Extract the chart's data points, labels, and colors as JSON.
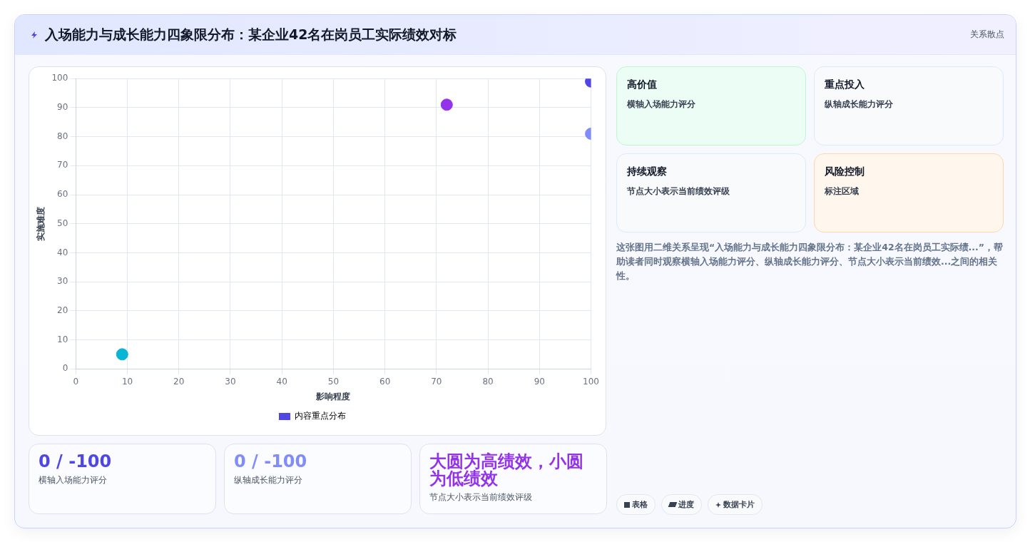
{
  "chart_data": {
    "type": "scatter",
    "title": "入场能力与成长能力四象限分布：某企业42名在岗员工实际绩效对标",
    "xlabel": "影响程度",
    "ylabel": "实施难度",
    "x": [
      9,
      72,
      100,
      100
    ],
    "series": [
      {
        "name": "内容重点分布",
        "color": "#4f46e5",
        "colors": [
          "#06b6d4",
          "#9333ea",
          "#4f46e5",
          "#818cf8"
        ],
        "values": [
          5,
          91,
          99,
          81
        ]
      }
    ],
    "xlim": [
      0,
      100
    ],
    "xticks": [
      0,
      10,
      20,
      30,
      40,
      50,
      60,
      70,
      80,
      90,
      100
    ],
    "ylim": [
      0,
      100
    ],
    "yticks": [
      0,
      10,
      20,
      30,
      40,
      50,
      60,
      70,
      80,
      90,
      100
    ],
    "grid": true,
    "legend": "bottom",
    "marker": "circle",
    "annotations": [
      "关系散点",
      "高价值",
      "横轴入场能力评分",
      "重点投入",
      "纵轴成长能力评分",
      "持续观察",
      "节点大小表示当前绩效评级",
      "风险控制",
      "标注区域",
      "这张图用二维关系呈现“入场能力与成长能力四象限分布：某企业42名在岗员工实际绩...”，帮助读者同时观察横轴入场能力评分、纵轴成长能力评分、节点大小表示当前绩效...之间的相关性。",
      "0 / -100",
      "横轴入场能力评分",
      "0 / -100",
      "纵轴成长能力评分",
      "大圆为高绩效，小圆为低绩效",
      "节点大小表示当前绩效评级",
      "表格",
      "进度",
      "数据卡片"
    ]
  }
}
